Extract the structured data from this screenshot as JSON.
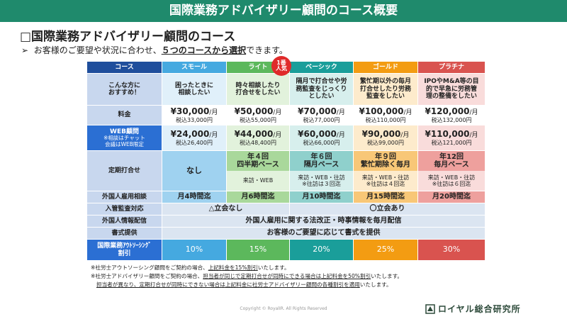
{
  "header": {
    "title": "国際業務アドバイザリー顧問のコース概要"
  },
  "subtitle": "□国際業務アドバイザリー顧問のコース",
  "lead": {
    "bullet": "➢",
    "before": "お客様のご要望や状況に合わせ、",
    "emphasis": "５つのコースから選択",
    "after": "できます。"
  },
  "table": {
    "corner": "コース",
    "courses": [
      "スモール",
      "ライト",
      "ベーシック",
      "ゴールド",
      "プラチナ"
    ],
    "badge": {
      "line1": "1番",
      "line2": "人気"
    },
    "rows": [
      {
        "label": [
          "こんな方に",
          "おすすめ！"
        ],
        "cells": [
          {
            "lines": [
              "困ったときに",
              "相談したい"
            ]
          },
          {
            "lines": [
              "時々相談したり",
              "打合せをしたい"
            ]
          },
          {
            "lines": [
              "隔月で打合せや労",
              "務監査をじっくり",
              "としたい"
            ]
          },
          {
            "lines": [
              "繁忙期以外の毎月",
              "打合せしたり労務",
              "監査をしたい"
            ]
          },
          {
            "lines": [
              "IPOやM&A等の目",
              "的で早急に労務管",
              "理の整備をしたい"
            ]
          }
        ]
      },
      {
        "label": [
          "料金"
        ],
        "cells": [
          {
            "price": "¥30,000",
            "unit": "/月",
            "sub": "税込33,000円"
          },
          {
            "price": "¥50,000",
            "unit": "/月",
            "sub": "税込55,000円"
          },
          {
            "price": "¥70,000",
            "unit": "/月",
            "sub": "税込77,000円"
          },
          {
            "price": "¥100,000",
            "unit": "/月",
            "sub": "税込110,000円"
          },
          {
            "price": "¥120,000",
            "unit": "/月",
            "sub": "税込132,000円"
          }
        ]
      },
      {
        "label": [
          "WEB顧問",
          "※相談はチャット",
          "会議はWEB限定"
        ],
        "cells": [
          {
            "price": "¥24,000",
            "unit": "/月",
            "sub": "税込26,400円"
          },
          {
            "price": "¥44,000",
            "unit": "/月",
            "sub": "税込48,400円"
          },
          {
            "price": "¥60,000",
            "unit": "/月",
            "sub": "税込66,000円"
          },
          {
            "price": "¥90,000",
            "unit": "/月",
            "sub": "税込99,000円"
          },
          {
            "price": "¥110,000",
            "unit": "/月",
            "sub": "税込121,000円"
          }
        ]
      },
      {
        "label": [
          "定期打合せ"
        ],
        "cells": [
          {
            "lines": [
              "なし"
            ]
          },
          {
            "lines": [
              "年４回",
              "四半期ベース"
            ],
            "notes": [
              "来訪・WEB"
            ]
          },
          {
            "lines": [
              "年６回",
              "隔月ベース"
            ],
            "notes": [
              "来訪・WEB・往訪",
              "※往訪は３回迄"
            ]
          },
          {
            "lines": [
              "年９回",
              "繁忙期除く毎月"
            ],
            "notes": [
              "来訪・WEB・往訪",
              "※往訪は４回迄"
            ]
          },
          {
            "lines": [
              "年12回",
              "毎月ベース"
            ],
            "notes": [
              "来訪・WEB・往訪",
              "※往訪は６回迄"
            ]
          }
        ]
      },
      {
        "label": [
          "外国人雇用相談"
        ],
        "cells": [
          {
            "lines": [
              "月4時間迄"
            ]
          },
          {
            "lines": [
              "月6時間迄"
            ]
          },
          {
            "lines": [
              "月10時間迄"
            ]
          },
          {
            "lines": [
              "月15時間迄"
            ]
          },
          {
            "lines": [
              "月20時間迄"
            ]
          }
        ]
      },
      {
        "label": [
          "入管監査対応"
        ],
        "cells": [
          {
            "lines": [
              "△立会なし"
            ]
          },
          {
            "lines": [
              "〇立会あり"
            ]
          }
        ]
      },
      {
        "label": [
          "外国人情報配信"
        ],
        "cells": [
          {
            "lines": [
              "外国人雇用に関する法改正・時事情報を毎月配信"
            ]
          }
        ]
      },
      {
        "label": [
          "書式提供"
        ],
        "cells": [
          {
            "lines": [
              "お客様のご要望に応じて書式を提供"
            ]
          }
        ]
      },
      {
        "label": [
          "国際業務ｱｳﾄｿｰｼﾝｸﾞ",
          "割引"
        ],
        "cells": [
          {
            "lines": [
              "10%"
            ]
          },
          {
            "lines": [
              "15%"
            ]
          },
          {
            "lines": [
              "20%"
            ]
          },
          {
            "lines": [
              "25%"
            ]
          },
          {
            "lines": [
              "30%"
            ]
          }
        ]
      }
    ]
  },
  "notes": [
    [
      {
        "text": "※社労士アウトソーシング顧問",
        "underline": false
      },
      {
        "text": "をご契約の場合、",
        "underline": false
      },
      {
        "text": "上記料金を15%割引",
        "underline": true
      },
      {
        "text": "いたします。",
        "underline": false
      }
    ],
    [
      {
        "text": "※社労士アドバイザリー顧問をご契約の場合、",
        "underline": false
      },
      {
        "text": "担当者が同じで定期打合せが同時にできる場合は上記料金を50%割引",
        "underline": true
      },
      {
        "text": "いたします。",
        "underline": false
      }
    ],
    [
      {
        "text": "担当者が異なり、定期打合せが同時にできない場合は上記料金に社労士アドバイザリー顧問の各種割引を適用",
        "underline": true
      },
      {
        "text": "いたします。",
        "underline": false
      }
    ]
  ],
  "footer": {
    "copyright": "Copyright © RoyalIR. All Rights Reserved",
    "logo": "ロイヤル総合研究所"
  }
}
